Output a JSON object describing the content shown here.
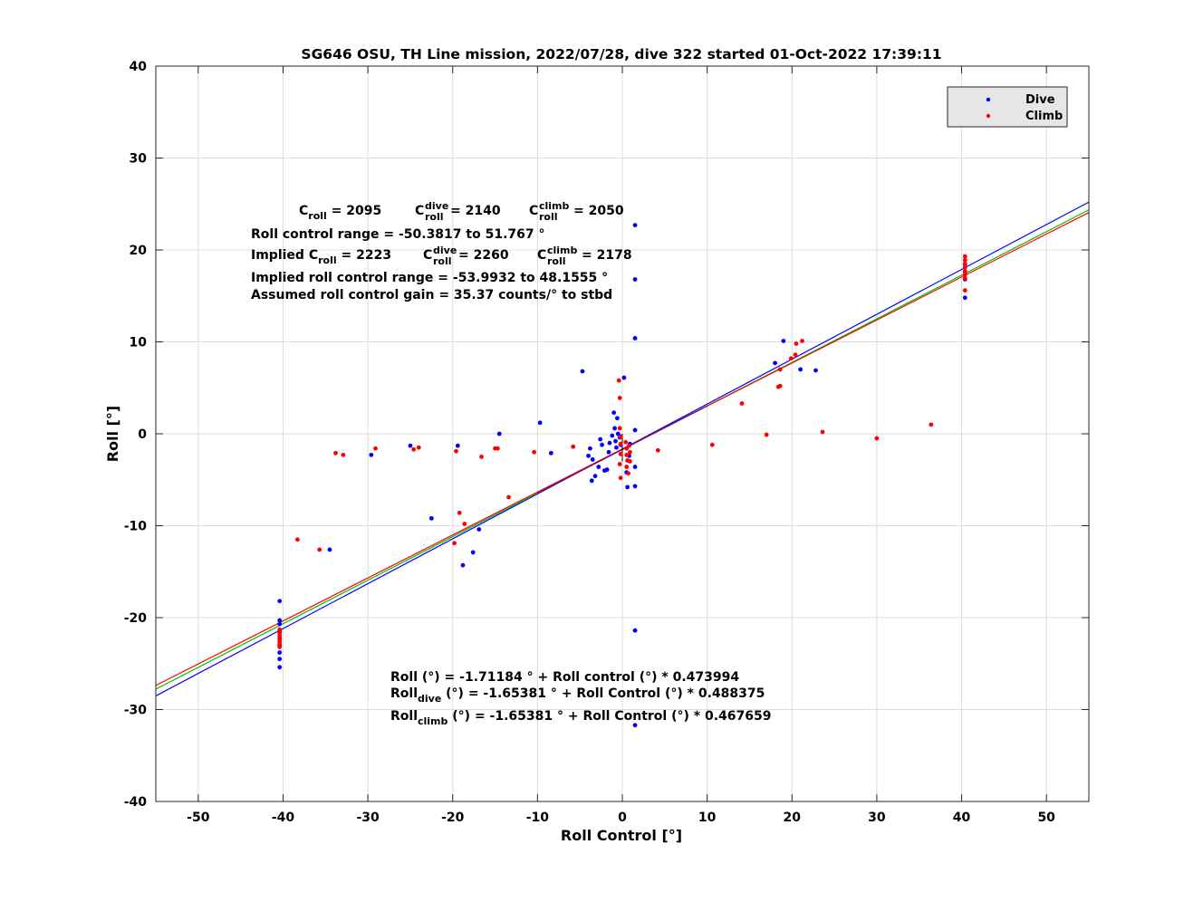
{
  "chart_data": {
    "type": "scatter",
    "title": "SG646 OSU, TH Line mission, 2022/07/28, dive 322 started 01-Oct-2022 17:39:11",
    "xlabel": "Roll Control [°]",
    "ylabel": "Roll [°]",
    "xlim": [
      -55,
      55
    ],
    "ylim": [
      -40,
      40
    ],
    "xticks": [
      -50,
      -40,
      -30,
      -20,
      -10,
      0,
      10,
      20,
      30,
      40,
      50
    ],
    "yticks": [
      -40,
      -30,
      -20,
      -10,
      0,
      10,
      20,
      30,
      40
    ],
    "grid": true,
    "legend_position": "top-right",
    "legend": [
      {
        "label": "Dive",
        "color": "#0000ff"
      },
      {
        "label": "Climb",
        "color": "#ff0000"
      }
    ],
    "annotations": {
      "c_roll": {
        "base": "C",
        "sub": "roll",
        "value": " = 2095"
      },
      "c_roll_dive": {
        "base": "C",
        "sub": "roll",
        "sup": "dive",
        "value": " = 2140"
      },
      "c_roll_climb": {
        "base": "C",
        "sub": "roll",
        "sup": "climb",
        "value": " = 2050"
      },
      "range": "Roll control range = -50.3817 to 51.767 °",
      "implied_pre": "Implied ",
      "implied_c_roll": {
        "base": "C",
        "sub": "roll",
        "value": " = 2223"
      },
      "implied_c_roll_dive": {
        "base": "C",
        "sub": "roll",
        "sup": "dive",
        "value": " = 2260"
      },
      "implied_c_roll_climb": {
        "base": "C",
        "sub": "roll",
        "sup": "climb",
        "value": " = 2178"
      },
      "implied_range": "Implied roll control range = -53.9932 to 48.1555 °",
      "gain": "Assumed roll control gain = 35.37 counts/° to stbd",
      "fit_all": "Roll (°) = -1.71184 ° + Roll control (°) * 0.473994",
      "fit_dive": {
        "base": "Roll",
        "sub": "dive",
        "rest": " (°) = -1.65381 ° + Roll Control (°) * 0.488375"
      },
      "fit_climb": {
        "base": "Roll",
        "sub": "climb",
        "rest": " (°) = -1.65381 ° + Roll Control (°) * 0.467659"
      }
    },
    "fit_lines": [
      {
        "color": "#0000ff",
        "intercept": -1.65381,
        "slope": 0.488375
      },
      {
        "color": "#00c000",
        "intercept": -1.71184,
        "slope": 0.473994
      },
      {
        "color": "#ff0000",
        "intercept": -1.65381,
        "slope": 0.467659
      },
      {
        "color": "#7f007f",
        "intercept": -1.71184,
        "slope": 0.473994,
        "range": [
          -10,
          10
        ]
      }
    ],
    "series": [
      {
        "name": "Dive",
        "color": "#0000ff",
        "points": [
          [
            -40.4,
            -18.2
          ],
          [
            -40.4,
            -20.3
          ],
          [
            -40.4,
            -20.7
          ],
          [
            -40.4,
            -21.5
          ],
          [
            -40.4,
            -22.3
          ],
          [
            -40.4,
            -23.0
          ],
          [
            -40.4,
            -23.8
          ],
          [
            -40.4,
            -24.5
          ],
          [
            -40.4,
            -25.4
          ],
          [
            -34.5,
            -12.6
          ],
          [
            -29.6,
            -2.3
          ],
          [
            -25,
            -1.3
          ],
          [
            -22.5,
            -9.2
          ],
          [
            -19.4,
            -1.3
          ],
          [
            -18.8,
            -14.3
          ],
          [
            -17.6,
            -12.9
          ],
          [
            -16.9,
            -10.4
          ],
          [
            -14.5,
            0
          ],
          [
            -9.7,
            1.2
          ],
          [
            -8.4,
            -2.1
          ],
          [
            -4.7,
            6.8
          ],
          [
            -4,
            -2.4
          ],
          [
            -3.8,
            -1.6
          ],
          [
            -3.6,
            -5.1
          ],
          [
            -3.2,
            -4.6
          ],
          [
            -3.5,
            -2.8
          ],
          [
            -2.8,
            -3.6
          ],
          [
            -2.6,
            -0.6
          ],
          [
            -2.4,
            -1.2
          ],
          [
            -2.1,
            -4
          ],
          [
            -1.8,
            -3.9
          ],
          [
            -1.6,
            -2
          ],
          [
            -1.5,
            -1
          ],
          [
            -1.2,
            -0.2
          ],
          [
            -1,
            2.3
          ],
          [
            -0.9,
            0.6
          ],
          [
            -0.8,
            -0.8
          ],
          [
            -0.7,
            -1.5
          ],
          [
            -0.6,
            1.7
          ],
          [
            -0.5,
            0
          ],
          [
            -0.3,
            -0.4
          ],
          [
            -0.2,
            -1.2
          ],
          [
            0.2,
            6.1
          ],
          [
            0.5,
            -4.2
          ],
          [
            0.6,
            -5.8
          ],
          [
            0.8,
            -2.4
          ],
          [
            0.9,
            -1.1
          ],
          [
            1.5,
            22.7
          ],
          [
            1.5,
            16.8
          ],
          [
            1.5,
            10.4
          ],
          [
            1.5,
            0.4
          ],
          [
            1.5,
            -3.6
          ],
          [
            1.5,
            -5.7
          ],
          [
            1.5,
            -21.4
          ],
          [
            1.5,
            -31.7
          ],
          [
            18,
            7.7
          ],
          [
            19,
            10.1
          ],
          [
            21,
            7
          ],
          [
            22.8,
            6.9
          ],
          [
            40.4,
            14.8
          ],
          [
            40.4,
            16.8
          ],
          [
            40.4,
            17.6
          ],
          [
            40.4,
            18.4
          ]
        ]
      },
      {
        "name": "Climb",
        "color": "#ff0000",
        "points": [
          [
            -40.4,
            -21.3
          ],
          [
            -40.4,
            -21.7
          ],
          [
            -40.4,
            -22.0
          ],
          [
            -40.4,
            -22.3
          ],
          [
            -40.4,
            -22.6
          ],
          [
            -40.4,
            -22.9
          ],
          [
            -40.4,
            -23.2
          ],
          [
            -38.3,
            -11.5
          ],
          [
            -35.7,
            -12.6
          ],
          [
            -33.8,
            -2.1
          ],
          [
            -32.9,
            -2.3
          ],
          [
            -29.1,
            -1.6
          ],
          [
            -24.6,
            -1.7
          ],
          [
            -24,
            -1.5
          ],
          [
            -19.8,
            -11.9
          ],
          [
            -19.6,
            -1.9
          ],
          [
            -19.2,
            -8.6
          ],
          [
            -18.6,
            -9.8
          ],
          [
            -16.6,
            -2.5
          ],
          [
            -15,
            -1.6
          ],
          [
            -14.7,
            -1.6
          ],
          [
            -13.4,
            -6.9
          ],
          [
            -10.4,
            -2
          ],
          [
            -5.8,
            -1.4
          ],
          [
            -0.4,
            5.8
          ],
          [
            -0.3,
            3.9
          ],
          [
            -0.3,
            0.6
          ],
          [
            -0.2,
            -0.3
          ],
          [
            -0.2,
            -1.1
          ],
          [
            -0.2,
            -2.2
          ],
          [
            -0.3,
            -3.3
          ],
          [
            -0.2,
            -4.8
          ],
          [
            0.4,
            -0.9
          ],
          [
            0.5,
            -1.6
          ],
          [
            0.5,
            -2.3
          ],
          [
            0.6,
            -2.9
          ],
          [
            0.5,
            -3.6
          ],
          [
            0.7,
            -4.3
          ],
          [
            0.8,
            -1.3
          ],
          [
            0.9,
            -2
          ],
          [
            0.9,
            -3
          ],
          [
            4.2,
            -1.8
          ],
          [
            10.6,
            -1.2
          ],
          [
            14.1,
            3.3
          ],
          [
            17,
            -0.1
          ],
          [
            18.4,
            5.1
          ],
          [
            18.6,
            5.2
          ],
          [
            18.6,
            7
          ],
          [
            19.9,
            8.2
          ],
          [
            20.4,
            8.6
          ],
          [
            20.5,
            9.8
          ],
          [
            21.2,
            10.1
          ],
          [
            23.6,
            0.2
          ],
          [
            30,
            -0.5
          ],
          [
            36.4,
            1
          ],
          [
            40.4,
            15.6
          ],
          [
            40.4,
            16.9
          ],
          [
            40.4,
            17.3
          ],
          [
            40.4,
            17.7
          ],
          [
            40.4,
            18.1
          ],
          [
            40.4,
            18.5
          ],
          [
            40.4,
            18.9
          ],
          [
            40.4,
            19.3
          ]
        ]
      }
    ]
  }
}
